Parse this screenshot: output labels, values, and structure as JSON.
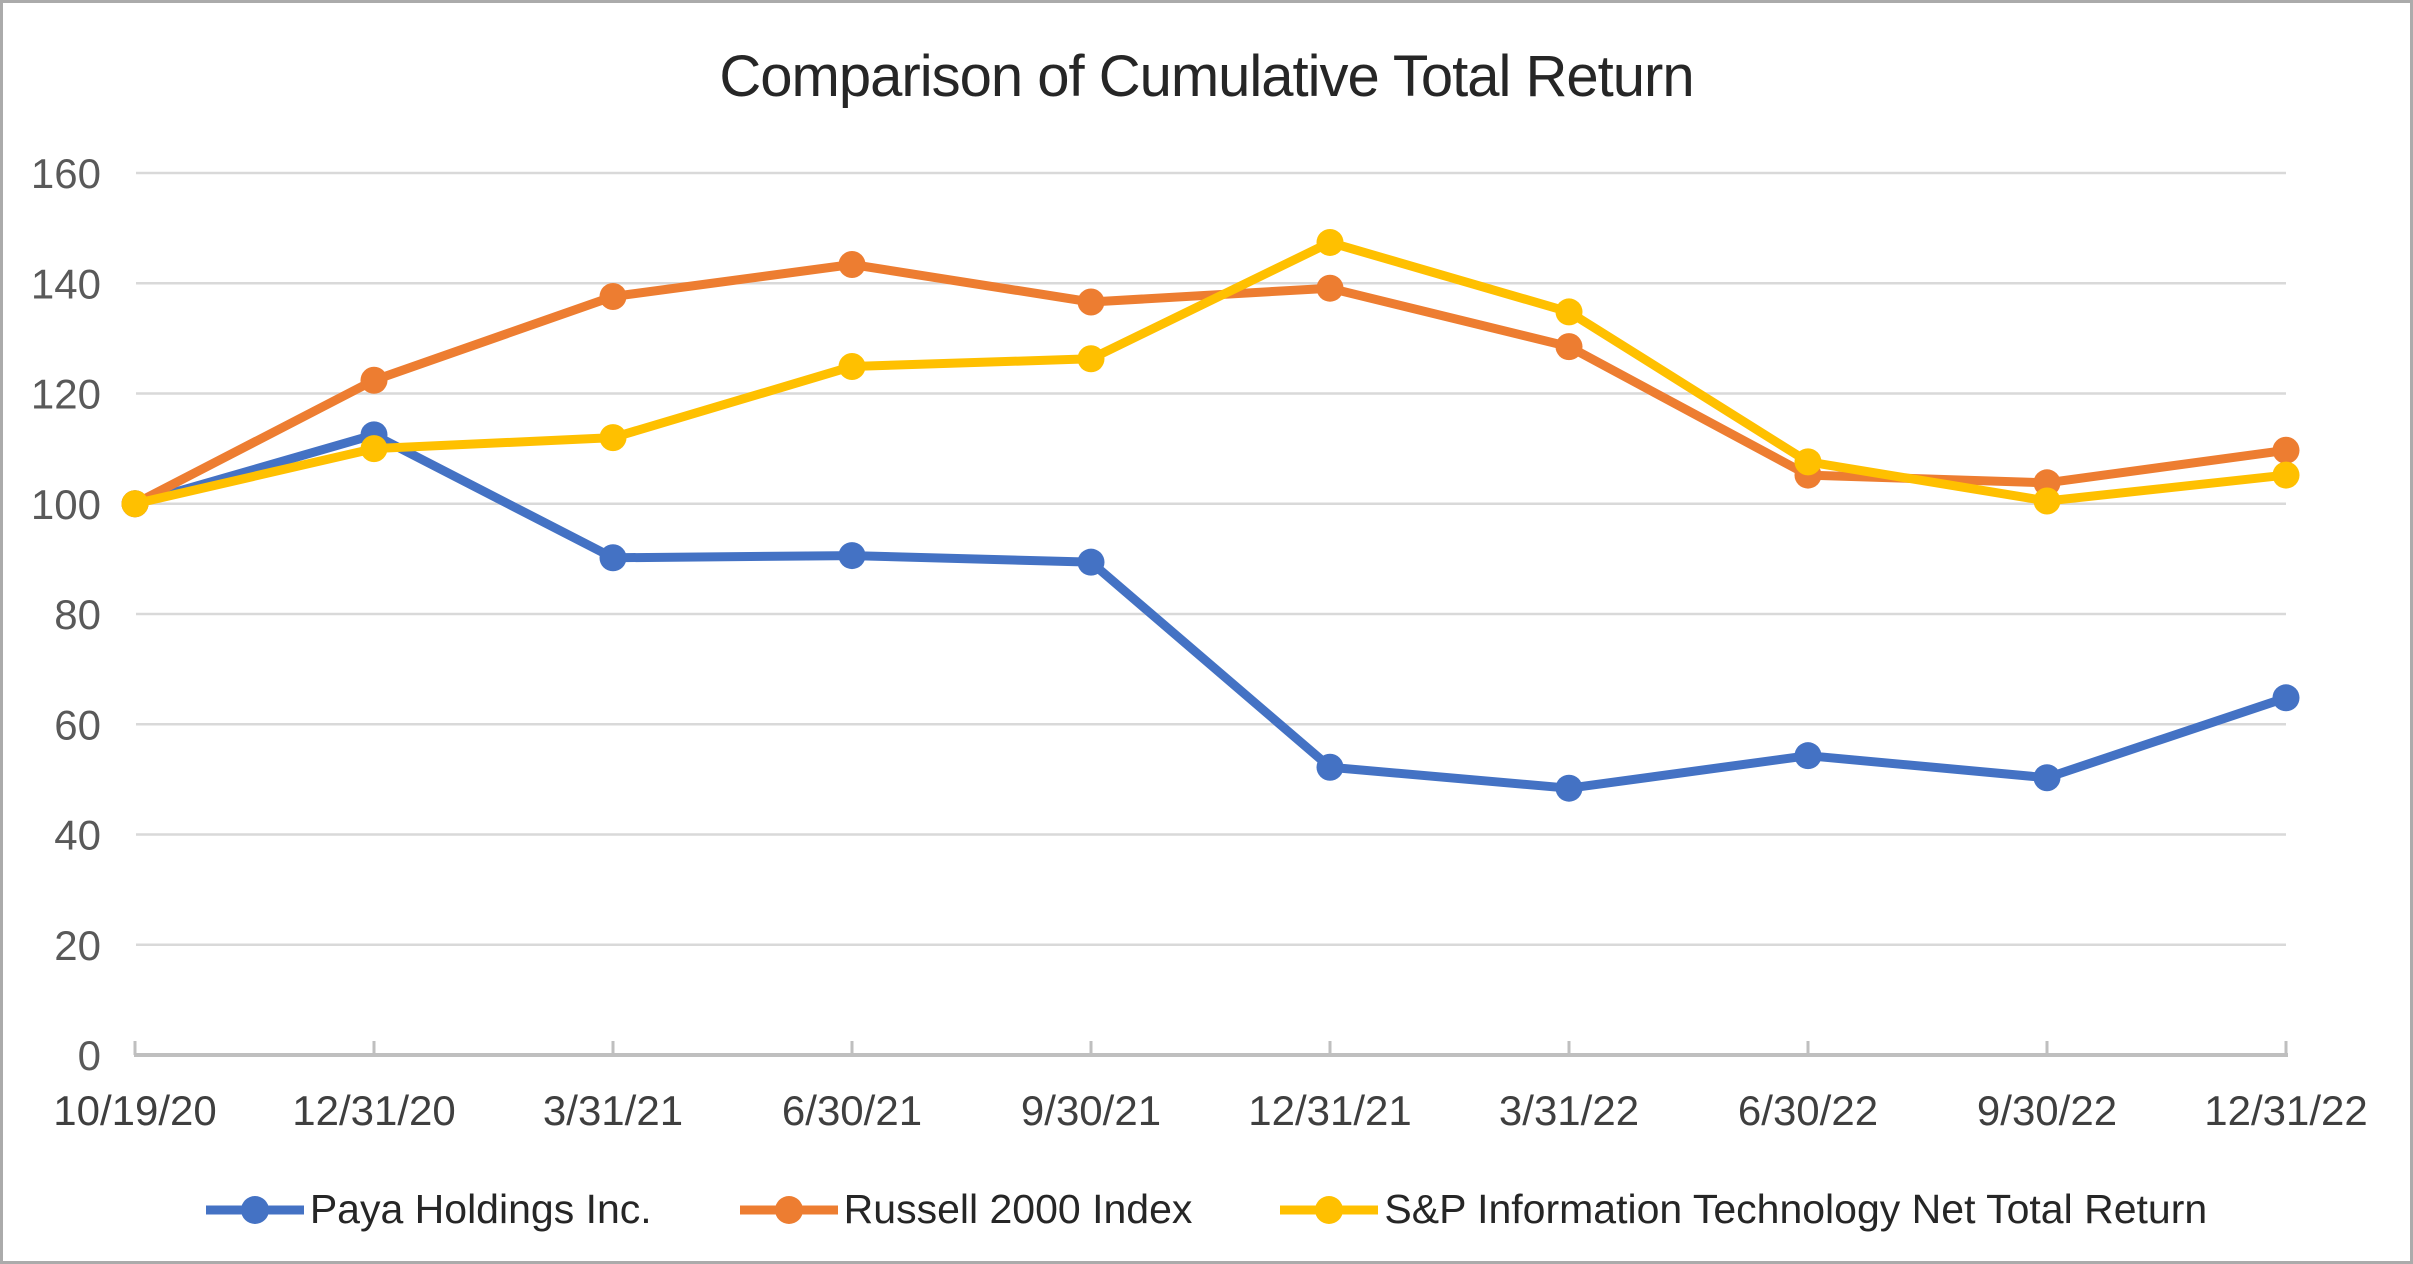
{
  "title": "Comparison of Cumulative Total Return",
  "chart_data": {
    "type": "line",
    "categories": [
      "10/19/20",
      "12/31/20",
      "3/31/21",
      "6/30/21",
      "9/30/21",
      "12/31/21",
      "3/31/22",
      "6/30/22",
      "9/30/22",
      "12/31/22"
    ],
    "series": [
      {
        "name": "Paya Holdings Inc.",
        "color": "#4472C4",
        "values": [
          100,
          112.5,
          90.2,
          90.6,
          89.4,
          52.2,
          48.4,
          54.3,
          50.3,
          64.8
        ]
      },
      {
        "name": "Russell 2000 Index",
        "color": "#ED7D31",
        "values": [
          100,
          122.4,
          137.6,
          143.4,
          136.6,
          139.1,
          128.5,
          105.2,
          103.8,
          109.7
        ]
      },
      {
        "name": "S&P Information Technology Net Total Return",
        "color": "#FFC000",
        "values": [
          100,
          110.0,
          112.0,
          124.9,
          126.3,
          147.4,
          134.8,
          107.6,
          100.5,
          105.2
        ]
      }
    ],
    "title": "Comparison of Cumulative Total Return",
    "xlabel": "",
    "ylabel": "",
    "ylim": [
      0,
      160
    ],
    "yticks": [
      0,
      20,
      40,
      60,
      80,
      100,
      120,
      140,
      160
    ],
    "grid": true,
    "legend_position": "bottom"
  },
  "colors": {
    "gridline": "#D9D9D9",
    "axis_line": "#BFBFBF",
    "y_label_text": "#595959",
    "x_label_text": "#3F3F3F",
    "title_text": "#262626",
    "border": "#ABABAB"
  }
}
